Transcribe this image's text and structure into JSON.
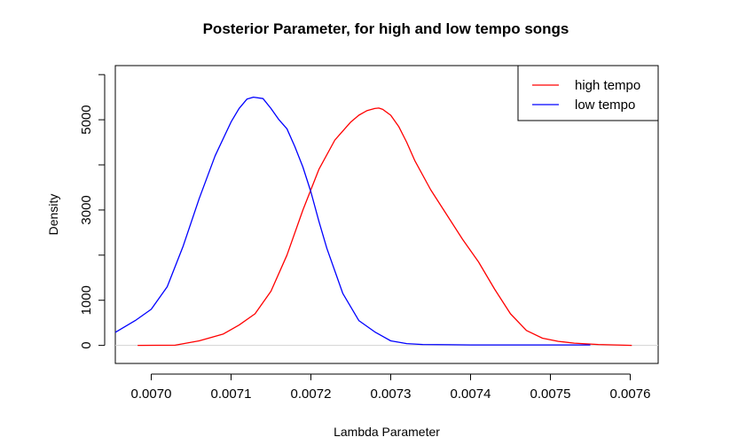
{
  "chart_data": {
    "type": "line",
    "title": "Posterior Parameter, for high and low tempo songs",
    "xlabel": "Lambda Parameter",
    "ylabel": "Density",
    "xlim": [
      0.006955,
      0.007635
    ],
    "ylim": [
      -400,
      6200
    ],
    "x_ticks": [
      0.007,
      0.0071,
      0.0072,
      0.0073,
      0.0074,
      0.0075,
      0.0076
    ],
    "x_tick_labels": [
      "0.0070",
      "0.0071",
      "0.0072",
      "0.0073",
      "0.0074",
      "0.0075",
      "0.0076"
    ],
    "y_ticks": [
      0,
      1000,
      2000,
      3000,
      4000,
      5000,
      6000
    ],
    "y_tick_labels": [
      "0",
      "1000",
      "",
      "3000",
      "",
      "5000",
      ""
    ],
    "grid": false,
    "zero_line_color": "#d3d3d3",
    "legend": {
      "position": "top-right"
    },
    "series": [
      {
        "name": "high tempo",
        "color": "#ff0000",
        "x": [
          0.006983,
          0.00703,
          0.00706,
          0.00709,
          0.00711,
          0.00713,
          0.00715,
          0.00717,
          0.00719,
          0.00721,
          0.00723,
          0.00725,
          0.00726,
          0.00727,
          0.00728,
          0.007285,
          0.00729,
          0.0073,
          0.00731,
          0.00732,
          0.00733,
          0.00735,
          0.00737,
          0.00739,
          0.00741,
          0.00743,
          0.00745,
          0.00747,
          0.00749,
          0.00751,
          0.00753,
          0.00756,
          0.007602
        ],
        "y": [
          0,
          5,
          100,
          250,
          450,
          700,
          1200,
          2000,
          3000,
          3900,
          4550,
          4950,
          5100,
          5200,
          5250,
          5260,
          5230,
          5100,
          4850,
          4500,
          4100,
          3450,
          2900,
          2350,
          1850,
          1250,
          700,
          330,
          160,
          90,
          50,
          20,
          0
        ]
      },
      {
        "name": "low tempo",
        "color": "#0000ff",
        "x": [
          0.006955,
          0.00698,
          0.007,
          0.00702,
          0.00704,
          0.00706,
          0.00708,
          0.0071,
          0.00711,
          0.00712,
          0.007128,
          0.00714,
          0.00715,
          0.00716,
          0.00717,
          0.00718,
          0.00719,
          0.0072,
          0.00721,
          0.00722,
          0.00724,
          0.00726,
          0.00728,
          0.0073,
          0.00732,
          0.00734,
          0.0074,
          0.00745,
          0.00755
        ],
        "y": [
          290,
          550,
          800,
          1300,
          2200,
          3250,
          4200,
          4950,
          5250,
          5460,
          5500,
          5470,
          5250,
          5000,
          4800,
          4400,
          3950,
          3400,
          2750,
          2150,
          1150,
          550,
          300,
          100,
          40,
          20,
          10,
          10,
          10
        ]
      }
    ]
  }
}
